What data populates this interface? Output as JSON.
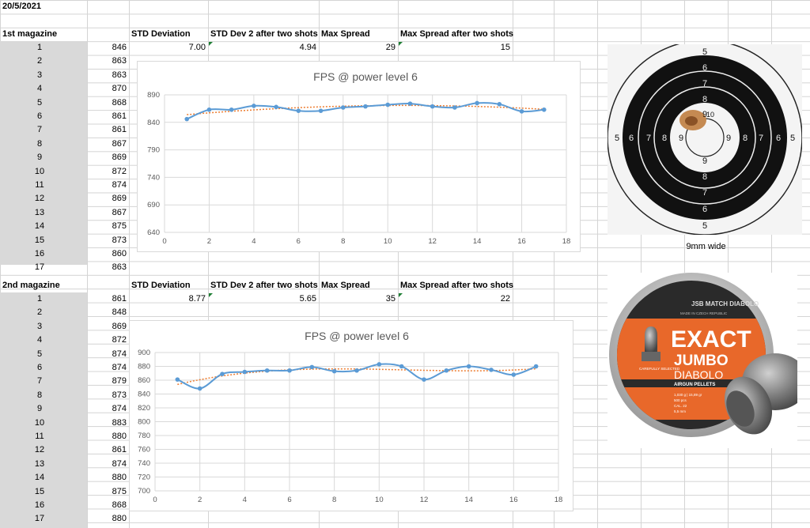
{
  "date": "20/5/2021",
  "block1": {
    "label": "1st magazine",
    "headers": {
      "std": "STD Deviation",
      "std2": "STD Dev 2 after two shots",
      "max": "Max Spread",
      "max2": "Max Spread after two shots"
    },
    "values": {
      "std": "7.00",
      "std2": "4.94",
      "max": "29",
      "max2": "15"
    },
    "rows": [
      {
        "n": "1",
        "v": "846"
      },
      {
        "n": "2",
        "v": "863"
      },
      {
        "n": "3",
        "v": "863"
      },
      {
        "n": "4",
        "v": "870"
      },
      {
        "n": "5",
        "v": "868"
      },
      {
        "n": "6",
        "v": "861"
      },
      {
        "n": "7",
        "v": "861"
      },
      {
        "n": "8",
        "v": "867"
      },
      {
        "n": "9",
        "v": "869"
      },
      {
        "n": "10",
        "v": "872"
      },
      {
        "n": "11",
        "v": "874"
      },
      {
        "n": "12",
        "v": "869"
      },
      {
        "n": "13",
        "v": "867"
      },
      {
        "n": "14",
        "v": "875"
      },
      {
        "n": "15",
        "v": "873"
      },
      {
        "n": "16",
        "v": "860"
      },
      {
        "n": "17",
        "v": "863"
      }
    ]
  },
  "block2": {
    "label": "2nd magazine",
    "headers": {
      "std": "STD Deviation",
      "std2": "STD Dev 2 after two shots",
      "max": "Max Spread",
      "max2": "Max Spread after two shots"
    },
    "values": {
      "std": "8.77",
      "std2": "5.65",
      "max": "35",
      "max2": "22"
    },
    "rows": [
      {
        "n": "1",
        "v": "861"
      },
      {
        "n": "2",
        "v": "848"
      },
      {
        "n": "3",
        "v": "869"
      },
      {
        "n": "4",
        "v": "872"
      },
      {
        "n": "5",
        "v": "874"
      },
      {
        "n": "6",
        "v": "874"
      },
      {
        "n": "7",
        "v": "879"
      },
      {
        "n": "8",
        "v": "873"
      },
      {
        "n": "9",
        "v": "874"
      },
      {
        "n": "10",
        "v": "883"
      },
      {
        "n": "11",
        "v": "880"
      },
      {
        "n": "12",
        "v": "861"
      },
      {
        "n": "13",
        "v": "874"
      },
      {
        "n": "14",
        "v": "880"
      },
      {
        "n": "15",
        "v": "875"
      },
      {
        "n": "16",
        "v": "868"
      },
      {
        "n": "17",
        "v": "880"
      }
    ]
  },
  "target_caption": "9mm wide",
  "target_rings": [
    "5",
    "6",
    "7",
    "8",
    "9",
    "10"
  ],
  "tin": {
    "brand": "JSB MATCH DIABOLO",
    "sub": "MADE IN CZECH REPUBLIC",
    "title1": "EXACT",
    "title2": "JUMBO",
    "title3": "DIABOLO",
    "band": "AIRGUN PELLETS",
    "side": "CAREFULLY SELECTED",
    "spec1": "1,030 g | 15,89 gr",
    "spec2": "500 pcs",
    "spec3": "CAL. 22",
    "spec4": "5,5 mm"
  },
  "colors": {
    "series": "#5b9bd5",
    "trend": "#ed7d31",
    "grid": "#d9d9d9",
    "tin_orange": "#e8682a"
  },
  "chart_data": [
    {
      "type": "line",
      "title": "FPS @ power level 6",
      "x": [
        1,
        2,
        3,
        4,
        5,
        6,
        7,
        8,
        9,
        10,
        11,
        12,
        13,
        14,
        15,
        16,
        17
      ],
      "series": [
        {
          "values": [
            846,
            863,
            863,
            870,
            868,
            861,
            861,
            867,
            869,
            872,
            874,
            869,
            867,
            875,
            873,
            860,
            863
          ]
        }
      ],
      "trendline": "polynomial",
      "xlim": [
        0,
        18
      ],
      "xticks": [
        0,
        2,
        4,
        6,
        8,
        10,
        12,
        14,
        16,
        18
      ],
      "ylim": [
        640,
        890
      ],
      "yticks": [
        640,
        690,
        740,
        790,
        840,
        890
      ],
      "grid": true,
      "legend": "none",
      "xlabel": "",
      "ylabel": ""
    },
    {
      "type": "line",
      "title": "FPS @ power level 6",
      "x": [
        1,
        2,
        3,
        4,
        5,
        6,
        7,
        8,
        9,
        10,
        11,
        12,
        13,
        14,
        15,
        16,
        17
      ],
      "series": [
        {
          "values": [
            861,
            848,
            869,
            872,
            874,
            874,
            879,
            873,
            874,
            883,
            880,
            861,
            874,
            880,
            875,
            868,
            880
          ]
        }
      ],
      "trendline": "polynomial",
      "xlim": [
        0,
        18
      ],
      "xticks": [
        0,
        2,
        4,
        6,
        8,
        10,
        12,
        14,
        16,
        18
      ],
      "ylim": [
        700,
        900
      ],
      "yticks": [
        700,
        720,
        740,
        760,
        780,
        800,
        820,
        840,
        860,
        880,
        900
      ],
      "grid": true,
      "legend": "none",
      "xlabel": "",
      "ylabel": ""
    }
  ]
}
